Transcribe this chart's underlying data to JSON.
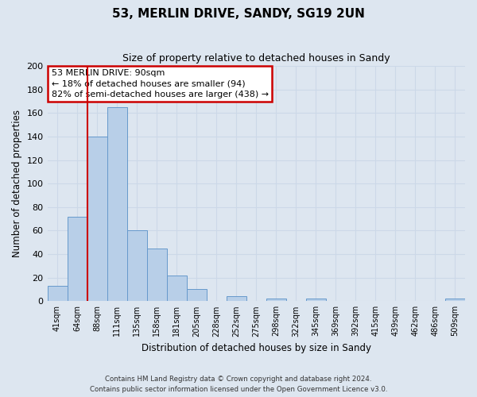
{
  "title": "53, MERLIN DRIVE, SANDY, SG19 2UN",
  "subtitle": "Size of property relative to detached houses in Sandy",
  "xlabel": "Distribution of detached houses by size in Sandy",
  "ylabel": "Number of detached properties",
  "bar_labels": [
    "41sqm",
    "64sqm",
    "88sqm",
    "111sqm",
    "135sqm",
    "158sqm",
    "181sqm",
    "205sqm",
    "228sqm",
    "252sqm",
    "275sqm",
    "298sqm",
    "322sqm",
    "345sqm",
    "369sqm",
    "392sqm",
    "415sqm",
    "439sqm",
    "462sqm",
    "486sqm",
    "509sqm"
  ],
  "bar_values": [
    13,
    72,
    140,
    165,
    60,
    45,
    22,
    10,
    0,
    4,
    0,
    2,
    0,
    2,
    0,
    0,
    0,
    0,
    0,
    0,
    2
  ],
  "bar_color": "#b8cfe8",
  "bar_edge_color": "#6699cc",
  "grid_color": "#ccd8e8",
  "background_color": "#dde6f0",
  "reference_line_color": "#cc0000",
  "annotation_text": "53 MERLIN DRIVE: 90sqm\n← 18% of detached houses are smaller (94)\n82% of semi-detached houses are larger (438) →",
  "annotation_box_color": "#ffffff",
  "annotation_border_color": "#cc0000",
  "ylim": [
    0,
    200
  ],
  "yticks": [
    0,
    20,
    40,
    60,
    80,
    100,
    120,
    140,
    160,
    180,
    200
  ],
  "footer_line1": "Contains HM Land Registry data © Crown copyright and database right 2024.",
  "footer_line2": "Contains public sector information licensed under the Open Government Licence v3.0."
}
